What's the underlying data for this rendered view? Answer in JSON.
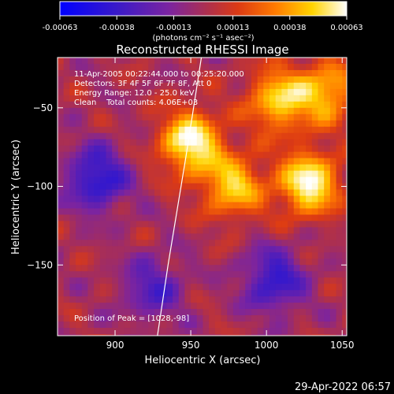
{
  "chart_data": {
    "type": "heatmap",
    "title": "Reconstructed RHESSI Image",
    "xlabel": "Heliocentric X (arcsec)",
    "ylabel": "Heliocentric Y (arcsec)",
    "xlim": [
      862,
      1053
    ],
    "ylim": [
      -195,
      -18
    ],
    "x_ticks": [
      900,
      950,
      1000,
      1050
    ],
    "x_tick_labels": [
      "900",
      "950",
      "1000",
      "1050"
    ],
    "y_ticks": [
      -50,
      -100,
      -150
    ],
    "y_tick_labels": [
      "−50",
      "−100",
      "−150"
    ],
    "colorbar": {
      "range": [
        -0.00063,
        0.00063
      ],
      "ticks": [
        -0.00063,
        -0.00038,
        -0.00013,
        0.00013,
        0.00038,
        0.00063
      ],
      "tick_labels": [
        "-0.00063",
        "-0.00038",
        "-0.00013",
        "0.00013",
        "0.00038",
        "0.00063"
      ],
      "unit_text": "(photons cm⁻² s⁻¹ asec⁻²)"
    },
    "annotations": {
      "time_range": "11-Apr-2005 00:22:44.000 to 00:25:20.000",
      "detectors": "Detectors: 3F 4F 5F 6F 7F 8F, Att 0",
      "energy": "Energy Range: 12.0 - 25.0 keV",
      "clean": "Clean    Total counts: 4.06E+03",
      "peak": "Position of Peak = [1028,-98]"
    },
    "grid": false,
    "colormap": "blue-purple-red-yellow-white",
    "bright_sources": [
      {
        "x": 950,
        "y": -72,
        "value": 0.00063
      },
      {
        "x": 1028,
        "y": -98,
        "value": 0.00063
      },
      {
        "x": 1008,
        "y": -45,
        "value": 0.0005
      },
      {
        "x": 978,
        "y": -100,
        "value": 0.00048
      },
      {
        "x": 1040,
        "y": -40,
        "value": 0.00045
      }
    ],
    "negative_regions": [
      {
        "x": 888,
        "y": -95,
        "value": -0.00045
      },
      {
        "x": 1005,
        "y": -160,
        "value": -0.0004
      },
      {
        "x": 925,
        "y": -165,
        "value": -0.0003
      }
    ],
    "limb_curve": [
      [
        957,
        -18
      ],
      [
        947,
        -80
      ],
      [
        935,
        -150
      ],
      [
        928,
        -195
      ]
    ]
  },
  "timestamp": "29-Apr-2022 06:57"
}
